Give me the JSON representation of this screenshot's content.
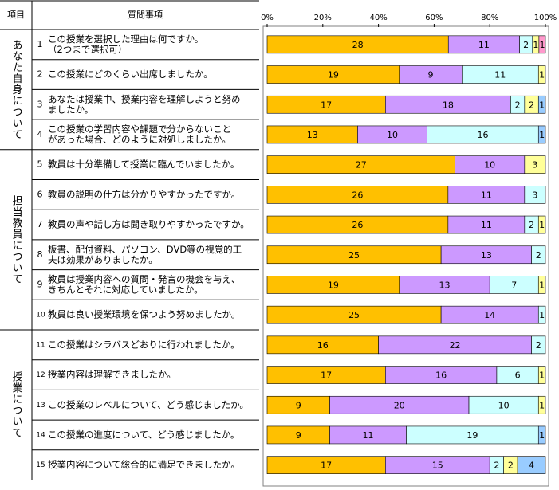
{
  "table": {
    "header": [
      "項目",
      "質問事項"
    ],
    "groups": [
      {
        "label": "あなた自身について",
        "items": [
          {
            "number": "1",
            "lines": [
              "この授業を選択した理由は何ですか。",
              "（2つまで選択可）"
            ]
          },
          {
            "number": "2",
            "lines": [
              "この授業にどのくらい出席しましたか。"
            ]
          },
          {
            "number": "3",
            "lines": [
              "あなたは授業中、授業内容を理解しようと努め",
              "ましたか。"
            ]
          },
          {
            "number": "4",
            "lines": [
              "この授業の学習内容や課題で分からないこと",
              "があった場合、どのように対処しましたか。"
            ]
          }
        ]
      },
      {
        "label": "担当教員について",
        "items": [
          {
            "number": "5",
            "lines": [
              "教員は十分準備して授業に臨んでいましたか。"
            ]
          },
          {
            "number": "6",
            "lines": [
              "教員の説明の仕方は分かりやすかったですか。"
            ]
          },
          {
            "number": "7",
            "lines": [
              "教員の声や話し方は聞き取りやすかったですか。"
            ]
          },
          {
            "number": "8",
            "lines": [
              "板書、配付資料、パソコン、DVD等の視覚的工",
              "夫は効果がありましたか。"
            ]
          },
          {
            "number": "9",
            "lines": [
              "教員は授業内容への質問・発言の機会を与え、",
              "きちんとそれに対応していましたか。"
            ]
          },
          {
            "number": "10",
            "lines": [
              "教員は良い授業環境を保つよう努めましたか。"
            ]
          }
        ]
      },
      {
        "label": "授業について",
        "items": [
          {
            "number": "11",
            "lines": [
              "この授業はシラバスどおりに行われましたか。"
            ]
          },
          {
            "number": "12",
            "lines": [
              "授業内容は理解できましたか。"
            ]
          },
          {
            "number": "13",
            "lines": [
              "この授業のレベルについて、どう感じましたか。"
            ]
          },
          {
            "number": "14",
            "lines": [
              "この授業の進度について、どう感じましたか。"
            ]
          },
          {
            "number": "15",
            "lines": [
              "授業内容について総合的に満足できましたか。"
            ]
          }
        ]
      }
    ]
  },
  "chart_data": {
    "type": "bar",
    "stacked": "percent",
    "xlim": [
      0,
      100
    ],
    "xticks": [
      {
        "value": 0,
        "label": "0%"
      },
      {
        "value": 20,
        "label": "20%"
      },
      {
        "value": 40,
        "label": "40%"
      },
      {
        "value": 60,
        "label": "60%"
      },
      {
        "value": 80,
        "label": "80%"
      },
      {
        "value": 100,
        "label": "100%"
      }
    ],
    "series": [
      {
        "color": "#FFC000",
        "values": [
          28,
          19,
          17,
          13,
          27,
          26,
          26,
          25,
          19,
          25,
          16,
          17,
          9,
          9,
          17
        ]
      },
      {
        "color": "#CC99FF",
        "values": [
          11,
          9,
          18,
          10,
          10,
          11,
          11,
          13,
          13,
          14,
          22,
          16,
          20,
          11,
          15
        ]
      },
      {
        "color": "#CCFFFF",
        "values": [
          2,
          11,
          2,
          16,
          null,
          3,
          2,
          2,
          7,
          1,
          2,
          6,
          10,
          19,
          2
        ]
      },
      {
        "color": "#FFFF99",
        "values": [
          1,
          1,
          2,
          null,
          3,
          null,
          1,
          null,
          1,
          null,
          null,
          1,
          1,
          null,
          2
        ]
      },
      {
        "color": "#99CCFF",
        "values": [
          null,
          null,
          1,
          1,
          null,
          null,
          null,
          null,
          null,
          null,
          null,
          null,
          null,
          1,
          4
        ]
      },
      {
        "color": "#FF99CC",
        "values": [
          1,
          null,
          null,
          null,
          null,
          null,
          null,
          null,
          null,
          null,
          null,
          null,
          null,
          null,
          null
        ]
      }
    ]
  }
}
